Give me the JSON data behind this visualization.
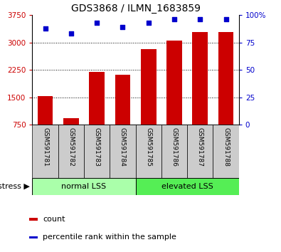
{
  "title": "GDS3868 / ILMN_1683859",
  "categories": [
    "GSM591781",
    "GSM591782",
    "GSM591783",
    "GSM591784",
    "GSM591785",
    "GSM591786",
    "GSM591787",
    "GSM591788"
  ],
  "bar_values": [
    1540,
    930,
    2200,
    2120,
    2820,
    3060,
    3280,
    3280
  ],
  "scatter_values": [
    88,
    83,
    93,
    89,
    93,
    96,
    96,
    96
  ],
  "ylim_left": [
    750,
    3750
  ],
  "ylim_right": [
    0,
    100
  ],
  "yticks_left": [
    750,
    1500,
    2250,
    3000,
    3750
  ],
  "yticks_right": [
    0,
    25,
    50,
    75,
    100
  ],
  "bar_color": "#cc0000",
  "scatter_color": "#0000cc",
  "group1_label": "normal LSS",
  "group2_label": "elevated LSS",
  "group1_indices": [
    0,
    1,
    2,
    3
  ],
  "group2_indices": [
    4,
    5,
    6,
    7
  ],
  "stress_label": "stress",
  "legend_bar_label": "count",
  "legend_scatter_label": "percentile rank within the sample",
  "group1_bg": "#aaffaa",
  "group2_bg": "#55ee55",
  "xlabel_bg": "#cccccc",
  "ytick_left_color": "#cc0000",
  "ytick_right_color": "#0000cc",
  "title_fontsize": 10,
  "xlim": [
    -0.5,
    7.5
  ]
}
